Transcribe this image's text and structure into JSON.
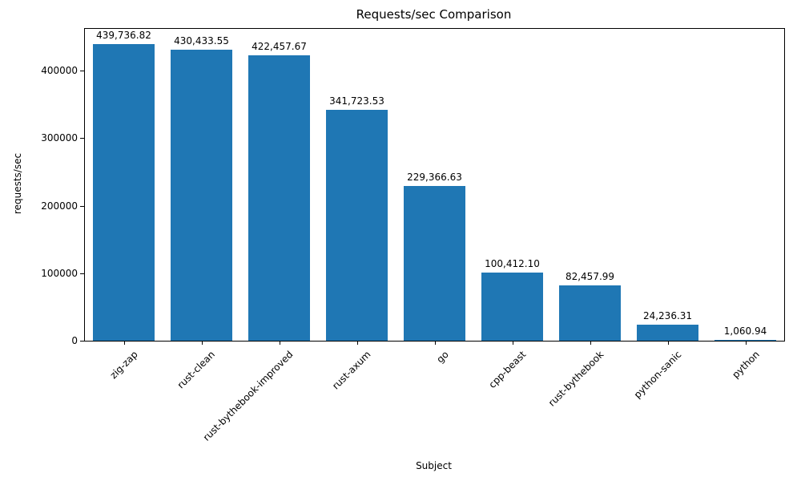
{
  "chart_data": {
    "type": "bar",
    "title": "Requests/sec Comparison",
    "xlabel": "Subject",
    "ylabel": "requests/sec",
    "categories": [
      "zig-zap",
      "rust-clean",
      "rust-bythebook-improved",
      "rust-axum",
      "go",
      "cpp-beast",
      "rust-bythebook",
      "python-sanic",
      "python"
    ],
    "values": [
      439736.82,
      430433.55,
      422457.67,
      341723.53,
      229366.63,
      100412.1,
      82457.99,
      24236.31,
      1060.94
    ],
    "value_labels": [
      "439,736.82",
      "430,433.55",
      "422,457.67",
      "341,723.53",
      "229,366.63",
      "100,412.10",
      "82,457.99",
      "24,236.31",
      "1,060.94"
    ],
    "y_ticks": [
      0,
      100000,
      200000,
      300000,
      400000
    ],
    "y_tick_labels": [
      "0",
      "100000",
      "200000",
      "300000",
      "400000"
    ],
    "ylim": [
      0,
      461723.66
    ],
    "bar_color": "#1f77b4",
    "grid": false,
    "legend": false,
    "bar_width_fraction": 0.8
  }
}
